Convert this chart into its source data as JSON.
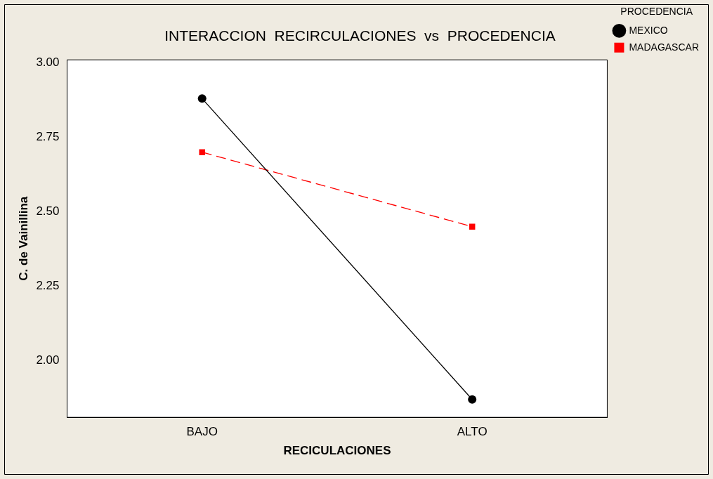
{
  "chart_data": {
    "type": "line",
    "title": "INTERACCION  RECIRCULACIONES  vs  PROCEDENCIA",
    "xlabel": "RECICULACIONES",
    "ylabel": "C. de Vainillina",
    "legend_title": "PROCEDENCIA",
    "legend": "top right",
    "grid": false,
    "categories": [
      "BAJO",
      "ALTO"
    ],
    "series": [
      {
        "name": "MEXICO",
        "color": "#000000",
        "values": [
          2.88,
          1.87
        ],
        "marker": "circle",
        "line_style": "solid"
      },
      {
        "name": "MADAGASCAR",
        "color": "#ff0000",
        "values": [
          2.7,
          2.45
        ],
        "marker": "square",
        "line_style": "dashed"
      }
    ],
    "ylim": [
      1.81,
      3.01
    ],
    "yticks": [
      {
        "value": 2,
        "label": "2.00"
      },
      {
        "value": 2.25,
        "label": "2.25"
      },
      {
        "value": 2.5,
        "label": "2.50"
      },
      {
        "value": 2.75,
        "label": "2.75"
      },
      {
        "value": 3,
        "label": "3.00"
      }
    ]
  }
}
